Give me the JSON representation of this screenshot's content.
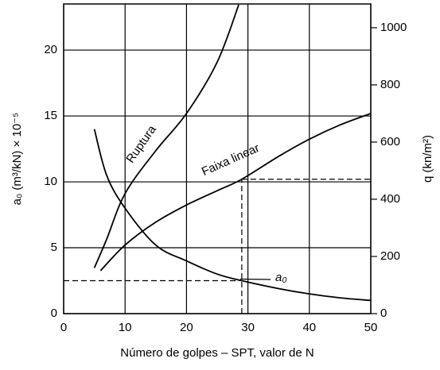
{
  "chart_data": {
    "type": "line",
    "xlabel": "Número de golpes – SPT, valor de N",
    "ylabel": "a₀ (m³/kN) × 10⁻⁵",
    "y2label": "q (kn/m²)",
    "xlim": [
      0,
      50
    ],
    "xticks": [
      0,
      10,
      20,
      30,
      40,
      50
    ],
    "ylim": [
      0,
      23.5
    ],
    "yticks": [
      0,
      5,
      10,
      15,
      20
    ],
    "y2lim": [
      0,
      1083
    ],
    "y2ticks": [
      0,
      200,
      400,
      600,
      800,
      1000
    ],
    "grid": true,
    "series": [
      {
        "name": "Ruptura",
        "axis": "y2",
        "color": "#000000",
        "x": [
          5,
          7,
          10,
          15,
          20,
          25,
          28.5
        ],
        "values": [
          160,
          260,
          420,
          570,
          700,
          880,
          1080
        ]
      },
      {
        "name": "Faixa linear",
        "axis": "y2",
        "color": "#000000",
        "x": [
          6,
          10,
          15,
          20,
          25,
          29,
          35,
          40,
          45,
          50
        ],
        "values": [
          150,
          240,
          320,
          380,
          430,
          470,
          550,
          610,
          660,
          700
        ]
      },
      {
        "name": "a₀",
        "color": "#000000",
        "x": [
          5,
          7,
          10,
          15,
          20,
          25,
          29,
          35,
          40,
          45,
          50
        ],
        "values": [
          14,
          10.5,
          8,
          5.2,
          4,
          3,
          2.5,
          1.9,
          1.5,
          1.2,
          1.0
        ]
      }
    ],
    "markers": {
      "N": 29,
      "a0": 2.5,
      "q": 470
    }
  }
}
